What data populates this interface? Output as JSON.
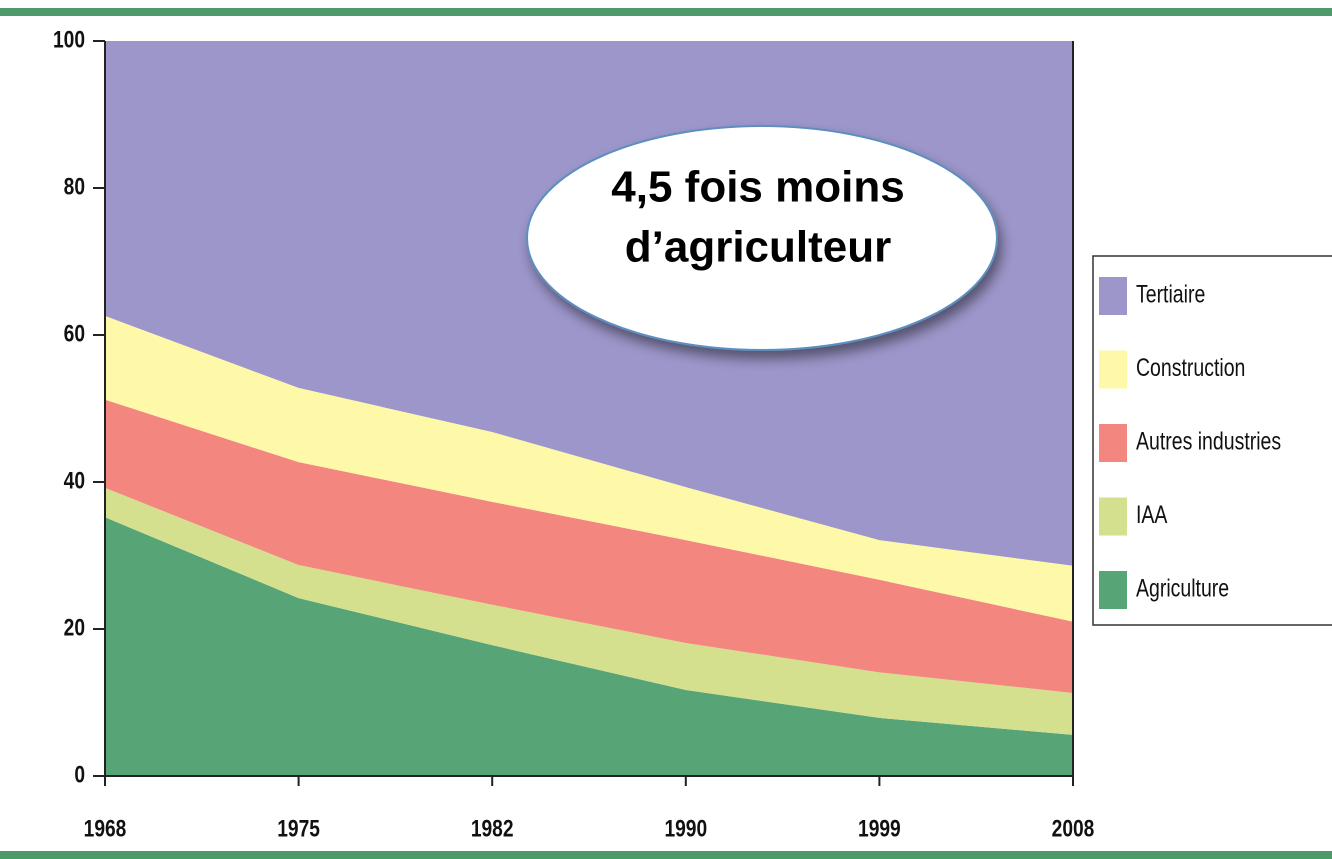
{
  "chart_data": {
    "type": "stacked_area",
    "categories": [
      "1968",
      "1975",
      "1982",
      "1990",
      "1999",
      "2008"
    ],
    "series": [
      {
        "name": "Tertiaire",
        "color": "#9c96ca",
        "values": [
          37.4,
          47.2,
          53.2,
          60.7,
          67.9,
          71.4
        ]
      },
      {
        "name": "Construction",
        "color": "#fef9a9",
        "values": [
          11.4,
          10.1,
          9.5,
          7.2,
          5.4,
          7.6
        ]
      },
      {
        "name": "Autres industries",
        "color": "#f3877f",
        "values": [
          12.0,
          14.0,
          14.0,
          14.0,
          12.6,
          9.7
        ]
      },
      {
        "name": "IAA",
        "color": "#d4e08e",
        "values": [
          4.0,
          4.5,
          5.5,
          6.4,
          6.2,
          5.7
        ]
      },
      {
        "name": "Agriculture",
        "color": "#57a476",
        "values": [
          35.2,
          24.2,
          17.8,
          11.7,
          7.9,
          5.6
        ]
      }
    ],
    "ylim": [
      0,
      100
    ],
    "yticks": [
      0,
      20,
      40,
      60,
      80,
      100
    ],
    "annotation": [
      "4,5 fois moins",
      "d’agriculteur"
    ]
  }
}
